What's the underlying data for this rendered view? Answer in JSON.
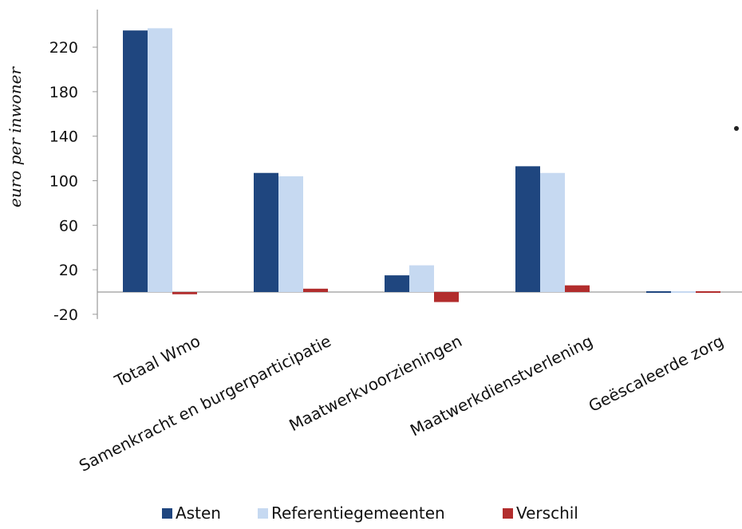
{
  "chart_data": {
    "type": "bar",
    "title": "",
    "xlabel": "",
    "ylabel": "euro per inwoner",
    "ylim": [
      -20,
      240
    ],
    "yticks": [
      220,
      180,
      140,
      100,
      60,
      20,
      -20
    ],
    "categories": [
      "Totaal Wmo",
      "Samenkracht en burgerparticipatie",
      "Maatwerkvoorzieningen",
      "Maatwerkdienstverlening",
      "Geëscaleerde zorg"
    ],
    "series": [
      {
        "name": "Asten",
        "color": "#1F467F",
        "values": [
          235,
          107,
          15,
          113,
          1
        ]
      },
      {
        "name": "Referentiegemeenten",
        "color": "#C6D9F1",
        "values": [
          237,
          104,
          24,
          107,
          1
        ]
      },
      {
        "name": "Verschil",
        "color": "#B22D2D",
        "values": [
          -2,
          3,
          -9,
          6,
          -1
        ]
      }
    ],
    "grid": false,
    "legend_position": "bottom"
  }
}
